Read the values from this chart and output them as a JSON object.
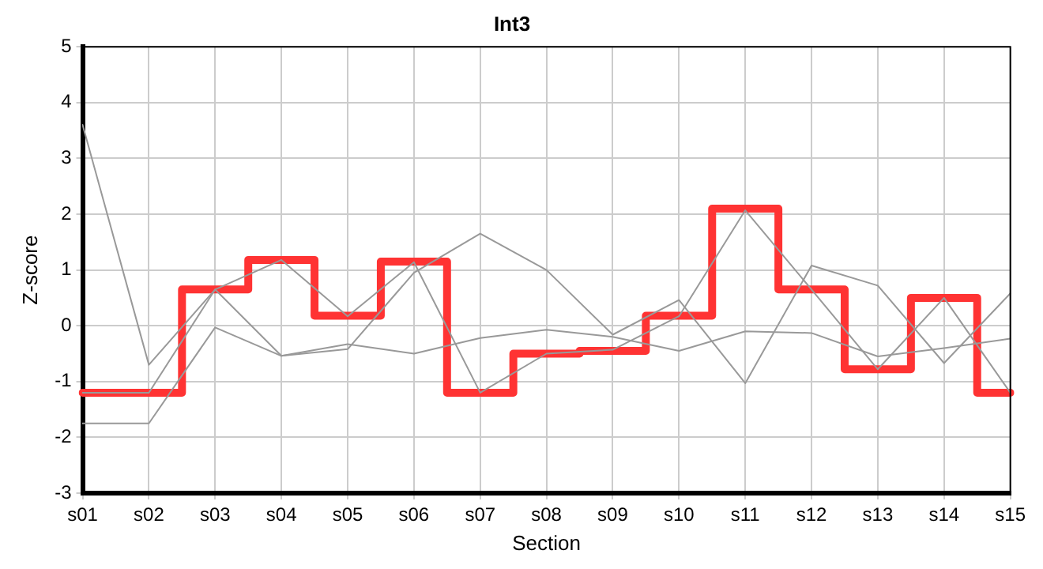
{
  "chart_data": {
    "type": "line",
    "title": "Int3",
    "xlabel": "Section",
    "ylabel": "Z-score",
    "categories": [
      "s01",
      "s02",
      "s03",
      "s04",
      "s05",
      "s06",
      "s07",
      "s08",
      "s09",
      "s10",
      "s11",
      "s12",
      "s13",
      "s14",
      "s15"
    ],
    "series": [
      {
        "type": "line",
        "color": "#999999",
        "values": [
          3.6,
          -0.7,
          0.65,
          -0.54,
          -0.42,
          0.95,
          1.65,
          1.0,
          -0.16,
          0.46,
          -1.03,
          1.08,
          0.72,
          -0.67,
          0.58
        ]
      },
      {
        "type": "line",
        "color": "#999999",
        "values": [
          -1.75,
          -1.75,
          -0.03,
          -0.54,
          -0.33,
          -0.5,
          -0.22,
          -0.07,
          -0.2,
          -0.45,
          -0.1,
          -0.13,
          -0.55,
          -0.4,
          -0.23
        ]
      },
      {
        "type": "line",
        "color": "#999999",
        "values": [
          -1.2,
          -1.2,
          0.65,
          1.18,
          0.17,
          1.14,
          -1.2,
          -0.5,
          -0.43,
          0.17,
          2.07,
          0.65,
          -0.78,
          0.5,
          -1.2
        ]
      },
      {
        "type": "step",
        "color": "#ff3333",
        "values": [
          -1.2,
          -1.2,
          0.65,
          1.18,
          0.18,
          1.15,
          -1.2,
          -0.5,
          -0.45,
          0.18,
          2.1,
          0.65,
          -0.78,
          0.5,
          -1.2
        ]
      }
    ],
    "ylim": [
      -3,
      5
    ],
    "yticks": [
      -3,
      -2,
      -1,
      0,
      1,
      2,
      3,
      4,
      5
    ],
    "grid": true,
    "legend": false,
    "marker": "none",
    "line_style": "solid"
  }
}
